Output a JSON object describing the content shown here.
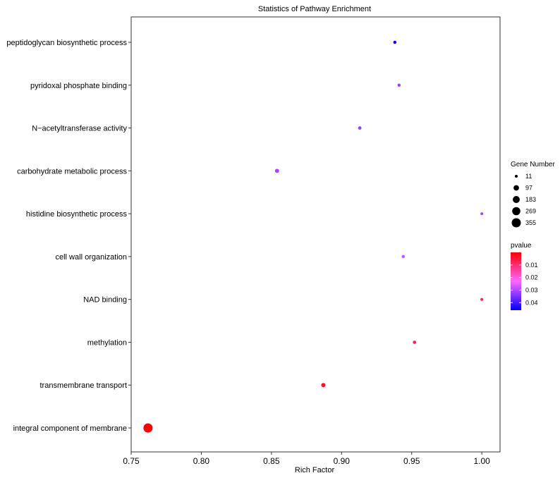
{
  "chart_data": {
    "type": "scatter",
    "title": "Statistics of Pathway Enrichment",
    "xlabel": "Rich Factor",
    "ylabel": "",
    "xlim": [
      0.75,
      1.013
    ],
    "xticks": [
      "0.75",
      "0.80",
      "0.85",
      "0.90",
      "0.95",
      "1.00"
    ],
    "xtick_values": [
      0.75,
      0.8,
      0.85,
      0.9,
      0.95,
      1.0
    ],
    "grid": false,
    "legend_position": "right",
    "categories": [
      "peptidoglycan biosynthetic process",
      "pyridoxal phosphate binding",
      "N−acetyltransferase activity",
      "carbohydrate metabolic process",
      "histidine biosynthetic process",
      "cell wall organization",
      "NAD binding",
      "methylation",
      "transmembrane transport",
      "integral component of membrane"
    ],
    "points": [
      {
        "category": "peptidoglycan biosynthetic process",
        "rich_factor": 0.938,
        "gene_number": 18,
        "pvalue": 0.045
      },
      {
        "category": "pyridoxal phosphate binding",
        "rich_factor": 0.941,
        "gene_number": 17,
        "pvalue": 0.032
      },
      {
        "category": "N−acetyltransferase activity",
        "rich_factor": 0.913,
        "gene_number": 22,
        "pvalue": 0.032
      },
      {
        "category": "carbohydrate metabolic process",
        "rich_factor": 0.854,
        "gene_number": 41,
        "pvalue": 0.031
      },
      {
        "category": "histidine biosynthetic process",
        "rich_factor": 1.0,
        "gene_number": 8,
        "pvalue": 0.031
      },
      {
        "category": "cell wall organization",
        "rich_factor": 0.944,
        "gene_number": 17,
        "pvalue": 0.028
      },
      {
        "category": "NAD binding",
        "rich_factor": 1.0,
        "gene_number": 13,
        "pvalue": 0.007
      },
      {
        "category": "methylation",
        "rich_factor": 0.952,
        "gene_number": 20,
        "pvalue": 0.007
      },
      {
        "category": "transmembrane transport",
        "rich_factor": 0.887,
        "gene_number": 47,
        "pvalue": 0.004
      },
      {
        "category": "integral component of membrane",
        "rich_factor": 0.762,
        "gene_number": 355,
        "pvalue": 0.0
      }
    ],
    "size_legend": {
      "title": "Gene Number",
      "values": [
        11,
        97,
        183,
        269,
        355
      ]
    },
    "color_legend": {
      "title": "pvalue",
      "ticks": [
        "0.01",
        "0.02",
        "0.03",
        "0.04"
      ],
      "tick_values": [
        0.01,
        0.02,
        0.03,
        0.04
      ],
      "range": [
        0.0,
        0.046
      ],
      "low_color": "#ff0000",
      "mid_color": "#ff66ff",
      "high_color": "#0000ff"
    }
  }
}
